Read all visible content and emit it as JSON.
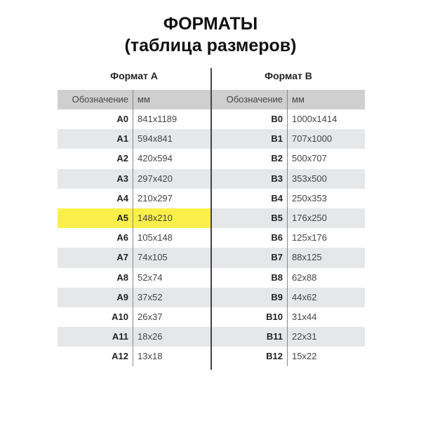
{
  "title": "ФОРМАТЫ",
  "subtitle": "(таблица размеров)",
  "tables": [
    {
      "caption": "Формат А",
      "col1": "Обозначение",
      "col2": "мм",
      "highlight_color": "#fbf04b",
      "rows": [
        {
          "name": "A0",
          "mm": "841x1189"
        },
        {
          "name": "A1",
          "mm": "594x841"
        },
        {
          "name": "A2",
          "mm": "420x594"
        },
        {
          "name": "A3",
          "mm": "297x420"
        },
        {
          "name": "A4",
          "mm": "210x297"
        },
        {
          "name": "A5",
          "mm": "148x210",
          "highlight": true
        },
        {
          "name": "A6",
          "mm": "105x148"
        },
        {
          "name": "A7",
          "mm": "74x105"
        },
        {
          "name": "A8",
          "mm": "52x74"
        },
        {
          "name": "A9",
          "mm": "37x52"
        },
        {
          "name": "A10",
          "mm": "26x37"
        },
        {
          "name": "A11",
          "mm": "18x26"
        },
        {
          "name": "A12",
          "mm": "13x18"
        }
      ]
    },
    {
      "caption": "Формат В",
      "col1": "Обозначение",
      "col2": "мм",
      "rows": [
        {
          "name": "B0",
          "mm": "1000x1414"
        },
        {
          "name": "B1",
          "mm": "707x1000"
        },
        {
          "name": "B2",
          "mm": "500x707"
        },
        {
          "name": "B3",
          "mm": "353x500"
        },
        {
          "name": "B4",
          "mm": "250x353"
        },
        {
          "name": "B5",
          "mm": "176x250"
        },
        {
          "name": "B6",
          "mm": "125x176"
        },
        {
          "name": "B7",
          "mm": "88x125"
        },
        {
          "name": "B8",
          "mm": "62x88"
        },
        {
          "name": "B9",
          "mm": "44x62"
        },
        {
          "name": "B10",
          "mm": "31x44"
        },
        {
          "name": "B11",
          "mm": "22x31"
        },
        {
          "name": "B12",
          "mm": "15x22"
        }
      ]
    }
  ]
}
